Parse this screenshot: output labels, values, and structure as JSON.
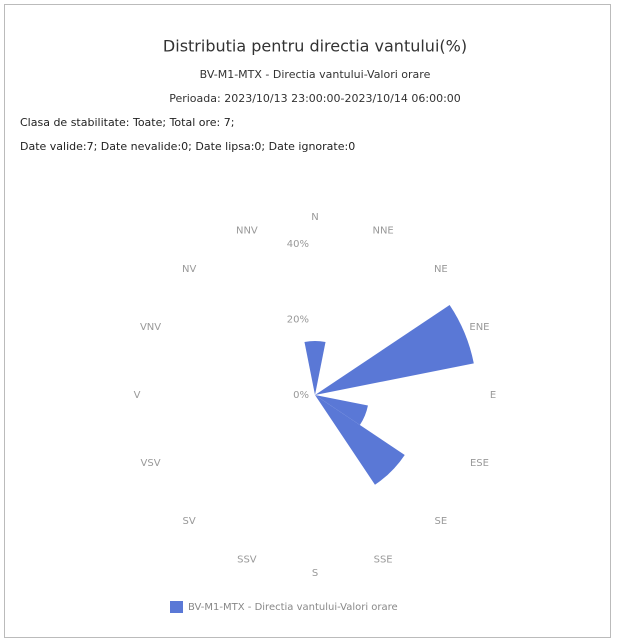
{
  "chart_data": {
    "type": "polar_bar",
    "title": "Distributia pentru directia vantului(%)",
    "subtitle": "BV-M1-MTX - Directia vantului-Valori orare",
    "period": "Perioada: 2023/10/13 23:00:00-2023/10/14 06:00:00",
    "info": [
      "Clasa de stabilitate: Toate; Total ore: 7;",
      "Date valide:7; Date nevalide:0; Date lipsa:0; Date ignorate:0"
    ],
    "categories": [
      "N",
      "NNE",
      "NE",
      "ENE",
      "E",
      "ESE",
      "SE",
      "SSE",
      "S",
      "SSV",
      "SV",
      "VSV",
      "V",
      "VNV",
      "NV",
      "NNV"
    ],
    "series": [
      {
        "name": "BV-M1-MTX - Directia vantului-Valori orare",
        "color": "#5a78d6",
        "values": [
          14.29,
          0,
          0,
          42.86,
          0,
          14.29,
          28.57,
          0,
          0,
          0,
          0,
          0,
          0,
          0,
          0,
          0
        ]
      }
    ],
    "ylim": [
      0,
      45
    ],
    "yticks": [
      {
        "value": 0,
        "label": "0%"
      },
      {
        "value": 20,
        "label": "20%"
      },
      {
        "value": 40,
        "label": "40%"
      }
    ],
    "legend": "bottom"
  }
}
